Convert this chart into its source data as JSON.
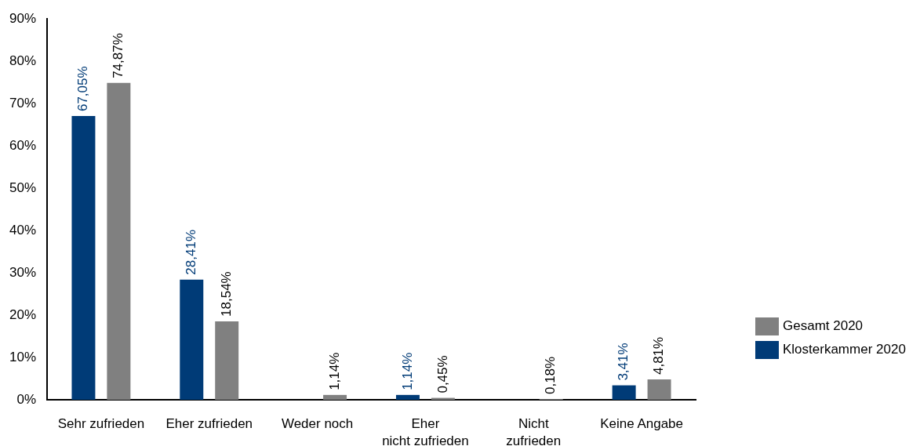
{
  "chart_data": {
    "type": "bar",
    "categories": [
      "Sehr zufrieden",
      "Eher zufrieden",
      "Weder noch",
      "Eher\nnicht zufrieden",
      "Nicht\nzufrieden",
      "Keine Angabe"
    ],
    "series": [
      {
        "name": "Klosterkammer 2020",
        "color": "#003b77",
        "values": [
          67.05,
          28.41,
          null,
          1.14,
          null,
          3.41
        ],
        "value_labels": [
          "67,05%",
          "28,41%",
          null,
          "1,14%",
          null,
          "3,41%"
        ]
      },
      {
        "name": "Gesamt 2020",
        "color": "#808080",
        "values": [
          74.87,
          18.54,
          1.14,
          0.45,
          0.18,
          4.81
        ],
        "value_labels": [
          "74,87%",
          "18,54%",
          "1,14%",
          "0,45%",
          "0,18%",
          "4,81%"
        ]
      }
    ],
    "ylim": [
      0,
      90
    ],
    "yticks": [
      {
        "value": 0,
        "label": "0%"
      },
      {
        "value": 10,
        "label": "10%"
      },
      {
        "value": 20,
        "label": "20%"
      },
      {
        "value": 30,
        "label": "30%"
      },
      {
        "value": 40,
        "label": "40%"
      },
      {
        "value": 50,
        "label": "50%"
      },
      {
        "value": 60,
        "label": "60%"
      },
      {
        "value": 70,
        "label": "70%"
      },
      {
        "value": 80,
        "label": "80%"
      },
      {
        "value": 90,
        "label": "90%"
      }
    ],
    "legend": "right"
  }
}
